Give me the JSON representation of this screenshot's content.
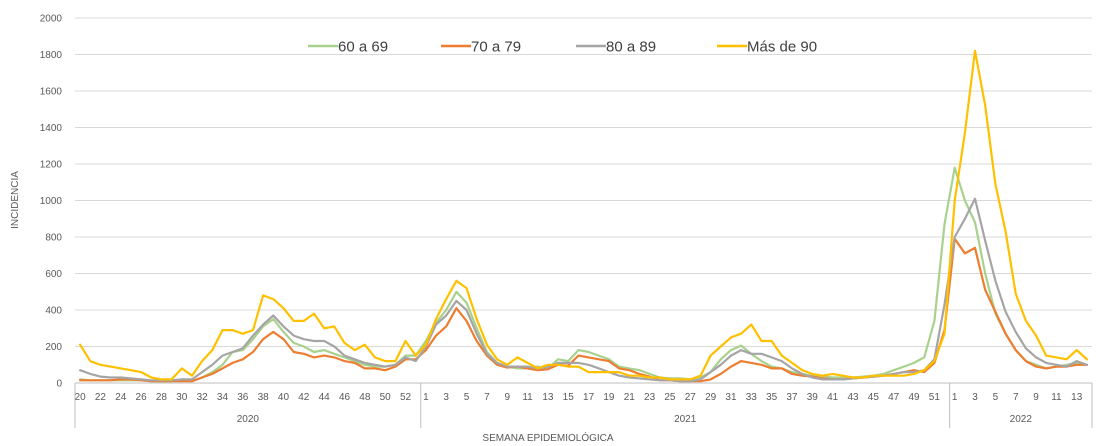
{
  "chart_data": {
    "type": "line",
    "title": "",
    "xlabel": "SEMANA EPIDEMIOLÓGICA",
    "ylabel": "INCIDENCIA",
    "ylim": [
      0,
      2000
    ],
    "yticks": [
      0,
      200,
      400,
      600,
      800,
      1000,
      1200,
      1400,
      1600,
      1800,
      2000
    ],
    "grid": true,
    "legend_position": "top",
    "x": [
      "20",
      "21",
      "22",
      "23",
      "24",
      "25",
      "26",
      "27",
      "28",
      "29",
      "30",
      "31",
      "32",
      "33",
      "34",
      "35",
      "36",
      "37",
      "38",
      "39",
      "40",
      "41",
      "42",
      "43",
      "44",
      "45",
      "46",
      "47",
      "48",
      "49",
      "50",
      "51",
      "52",
      "53",
      "1",
      "2",
      "3",
      "4",
      "5",
      "6",
      "7",
      "8",
      "9",
      "10",
      "11",
      "12",
      "13",
      "14",
      "15",
      "16",
      "17",
      "18",
      "19",
      "20",
      "21",
      "22",
      "23",
      "24",
      "25",
      "26",
      "27",
      "28",
      "29",
      "30",
      "31",
      "32",
      "33",
      "34",
      "35",
      "36",
      "37",
      "38",
      "39",
      "40",
      "41",
      "42",
      "43",
      "44",
      "45",
      "46",
      "47",
      "48",
      "49",
      "50",
      "51",
      "52",
      "1",
      "2",
      "3",
      "4",
      "5",
      "6",
      "7",
      "8",
      "9",
      "10",
      "11",
      "12",
      "13",
      "14"
    ],
    "x_tick_labels": [
      "20",
      "22",
      "24",
      "26",
      "28",
      "30",
      "32",
      "34",
      "36",
      "38",
      "40",
      "42",
      "44",
      "46",
      "48",
      "50",
      "52",
      "1",
      "3",
      "5",
      "7",
      "9",
      "11",
      "13",
      "15",
      "17",
      "19",
      "21",
      "23",
      "25",
      "27",
      "29",
      "31",
      "33",
      "35",
      "37",
      "39",
      "41",
      "43",
      "45",
      "47",
      "49",
      "51",
      "1",
      "3",
      "5",
      "7",
      "9",
      "11",
      "13"
    ],
    "year_groups": [
      {
        "label": "2020",
        "start": 0,
        "end": 33
      },
      {
        "label": "2021",
        "start": 34,
        "end": 85
      },
      {
        "label": "2022",
        "start": 86,
        "end": 99
      }
    ],
    "series": [
      {
        "name": "60 a 69",
        "color": "#a9d18e",
        "values": [
          20,
          15,
          15,
          15,
          15,
          15,
          15,
          10,
          10,
          10,
          20,
          10,
          30,
          60,
          100,
          170,
          180,
          240,
          310,
          350,
          280,
          220,
          200,
          170,
          180,
          160,
          140,
          120,
          100,
          90,
          90,
          100,
          150,
          150,
          230,
          330,
          400,
          500,
          440,
          300,
          170,
          110,
          90,
          80,
          80,
          90,
          80,
          130,
          120,
          180,
          170,
          150,
          130,
          90,
          80,
          70,
          50,
          30,
          25,
          25,
          20,
          30,
          60,
          130,
          180,
          205,
          160,
          120,
          90,
          80,
          60,
          50,
          40,
          35,
          30,
          30,
          30,
          35,
          40,
          50,
          70,
          90,
          110,
          140,
          340,
          870,
          1180,
          1000,
          880,
          600,
          380,
          270,
          180,
          120,
          100,
          80,
          90,
          100,
          110,
          100
        ]
      },
      {
        "name": "70 a 79",
        "color": "#ed7d31",
        "values": [
          15,
          15,
          15,
          15,
          20,
          20,
          15,
          10,
          10,
          10,
          10,
          10,
          30,
          50,
          80,
          110,
          130,
          170,
          240,
          280,
          240,
          170,
          160,
          140,
          150,
          140,
          120,
          110,
          80,
          80,
          70,
          90,
          130,
          130,
          180,
          260,
          310,
          410,
          340,
          230,
          150,
          100,
          85,
          90,
          80,
          70,
          75,
          100,
          95,
          150,
          140,
          130,
          120,
          80,
          70,
          50,
          35,
          15,
          15,
          10,
          10,
          10,
          20,
          50,
          90,
          120,
          110,
          100,
          80,
          80,
          50,
          40,
          35,
          25,
          20,
          20,
          25,
          30,
          35,
          40,
          50,
          60,
          70,
          60,
          110,
          290,
          790,
          710,
          740,
          510,
          390,
          270,
          180,
          120,
          90,
          80,
          90,
          90,
          100,
          100
        ]
      },
      {
        "name": "80 a 89",
        "color": "#a5a5a5",
        "values": [
          70,
          50,
          35,
          30,
          30,
          25,
          20,
          15,
          15,
          15,
          20,
          20,
          60,
          100,
          150,
          170,
          190,
          260,
          320,
          370,
          310,
          260,
          240,
          230,
          230,
          200,
          150,
          130,
          110,
          100,
          90,
          100,
          140,
          120,
          200,
          320,
          370,
          450,
          400,
          270,
          160,
          110,
          90,
          90,
          90,
          80,
          90,
          110,
          110,
          110,
          100,
          80,
          60,
          40,
          30,
          25,
          20,
          15,
          15,
          10,
          10,
          20,
          60,
          100,
          150,
          180,
          160,
          160,
          140,
          120,
          80,
          50,
          30,
          20,
          20,
          20,
          25,
          30,
          35,
          40,
          50,
          60,
          60,
          70,
          130,
          430,
          800,
          900,
          1010,
          780,
          560,
          390,
          280,
          190,
          140,
          110,
          100,
          90,
          120,
          100
        ]
      },
      {
        "name": "Más de 90",
        "color": "#ffc000",
        "values": [
          210,
          120,
          100,
          90,
          80,
          70,
          60,
          30,
          20,
          20,
          80,
          40,
          120,
          180,
          290,
          290,
          270,
          290,
          480,
          460,
          410,
          340,
          340,
          380,
          300,
          310,
          220,
          180,
          210,
          140,
          120,
          120,
          230,
          150,
          210,
          350,
          460,
          560,
          520,
          350,
          210,
          130,
          100,
          140,
          110,
          80,
          100,
          100,
          90,
          90,
          60,
          60,
          60,
          60,
          40,
          40,
          30,
          30,
          20,
          20,
          20,
          40,
          150,
          200,
          250,
          270,
          320,
          230,
          230,
          150,
          110,
          70,
          50,
          40,
          50,
          40,
          30,
          30,
          40,
          40,
          40,
          40,
          50,
          70,
          120,
          270,
          1000,
          1370,
          1820,
          1520,
          1090,
          830,
          490,
          340,
          260,
          150,
          140,
          130,
          180,
          130
        ]
      }
    ]
  }
}
